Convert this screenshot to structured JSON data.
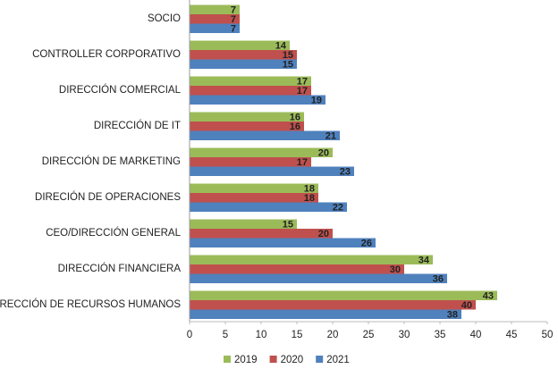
{
  "chart_data": {
    "type": "barh",
    "categories": [
      "SOCIO",
      "CONTROLLER CORPORATIVO",
      "DIRECCIÓN COMERCIAL",
      "DIRECCIÓN DE IT",
      "DIRECCIÓN DE MARKETING",
      "DIRECIÓN DE OPERACIONES",
      "CEO/DIRECCIÓN GENERAL",
      "DIRECCIÓN FINANCIERA",
      "DIRECCIÓN DE RECURSOS HUMANOS"
    ],
    "series": [
      {
        "name": "2019",
        "color": "#9bbb59",
        "values": [
          7,
          14,
          17,
          16,
          20,
          18,
          15,
          34,
          43
        ]
      },
      {
        "name": "2020",
        "color": "#c0504d",
        "values": [
          7,
          15,
          17,
          16,
          17,
          18,
          20,
          30,
          40
        ]
      },
      {
        "name": "2021",
        "color": "#4f81bd",
        "values": [
          7,
          15,
          19,
          21,
          23,
          22,
          26,
          36,
          38
        ]
      }
    ],
    "xlim": [
      0,
      50
    ],
    "xticks": [
      0,
      5,
      10,
      15,
      20,
      25,
      30,
      35,
      40,
      45,
      50
    ],
    "legend": "bottom"
  }
}
